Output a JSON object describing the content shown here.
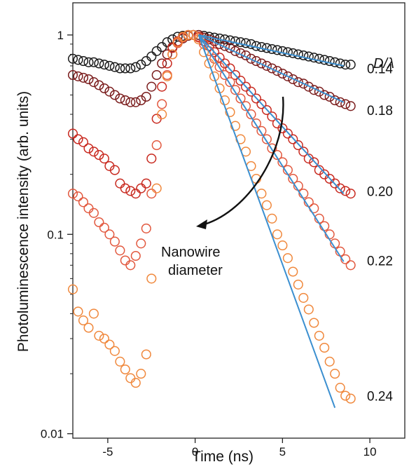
{
  "chart_data": {
    "type": "scatter",
    "title": "",
    "xlabel": "Time (ns)",
    "ylabel": "Photoluminescence intensity (arb. units)",
    "xlim": [
      -7,
      12
    ],
    "ylim": [
      0.0095,
      1.45
    ],
    "yscale": "log",
    "grid": false,
    "xticks": [
      -5,
      0,
      5,
      10
    ],
    "xtick_labels": [
      "-5",
      "0",
      "5",
      "10"
    ],
    "yticks": [
      0.01,
      0.1,
      1
    ],
    "ytick_labels": [
      "0.01",
      "0.1",
      "1"
    ],
    "legend_title": "D/λ",
    "annotation": {
      "line1": "Nanowire",
      "line2": "diameter"
    },
    "series": [
      {
        "label": "0.14",
        "color": "#1a1a1a",
        "label_value": 0.68,
        "points": [
          [
            -7,
            0.76
          ],
          [
            -6.7,
            0.75
          ],
          [
            -6.4,
            0.74
          ],
          [
            -6.1,
            0.73
          ],
          [
            -5.8,
            0.73
          ],
          [
            -5.5,
            0.72
          ],
          [
            -5.2,
            0.71
          ],
          [
            -4.9,
            0.7
          ],
          [
            -4.6,
            0.69
          ],
          [
            -4.3,
            0.68
          ],
          [
            -4.0,
            0.68
          ],
          [
            -3.7,
            0.68
          ],
          [
            -3.4,
            0.69
          ],
          [
            -3.1,
            0.71
          ],
          [
            -2.8,
            0.74
          ],
          [
            -2.5,
            0.78
          ],
          [
            -2.2,
            0.83
          ],
          [
            -1.9,
            0.87
          ],
          [
            -1.6,
            0.92
          ],
          [
            -1.3,
            0.95
          ],
          [
            -1.0,
            0.98
          ],
          [
            -0.7,
            0.99
          ],
          [
            -0.4,
            1.0
          ],
          [
            -0.1,
            1.0
          ],
          [
            0.2,
            1.0
          ],
          [
            0.5,
            0.99
          ],
          [
            0.8,
            0.98
          ],
          [
            1.1,
            0.97
          ],
          [
            1.4,
            0.96
          ],
          [
            1.7,
            0.95
          ],
          [
            2.0,
            0.94
          ],
          [
            2.3,
            0.93
          ],
          [
            2.6,
            0.92
          ],
          [
            2.9,
            0.91
          ],
          [
            3.2,
            0.9
          ],
          [
            3.5,
            0.88
          ],
          [
            3.8,
            0.87
          ],
          [
            4.1,
            0.86
          ],
          [
            4.4,
            0.85
          ],
          [
            4.7,
            0.84
          ],
          [
            5.0,
            0.83
          ],
          [
            5.3,
            0.82
          ],
          [
            5.6,
            0.81
          ],
          [
            5.9,
            0.8
          ],
          [
            6.2,
            0.79
          ],
          [
            6.5,
            0.78
          ],
          [
            6.8,
            0.77
          ],
          [
            7.1,
            0.76
          ],
          [
            7.4,
            0.75
          ],
          [
            7.7,
            0.74
          ],
          [
            8.0,
            0.73
          ],
          [
            8.3,
            0.72
          ],
          [
            8.6,
            0.71
          ],
          [
            8.9,
            0.71
          ]
        ],
        "fit": [
          [
            0.2,
            1.0
          ],
          [
            8.5,
            0.7
          ]
        ]
      },
      {
        "label": "0.18",
        "color": "#7a1c1c",
        "label_value": 0.42,
        "points": [
          [
            -7,
            0.63
          ],
          [
            -6.7,
            0.62
          ],
          [
            -6.4,
            0.61
          ],
          [
            -6.1,
            0.6
          ],
          [
            -5.8,
            0.58
          ],
          [
            -5.5,
            0.56
          ],
          [
            -5.2,
            0.54
          ],
          [
            -4.9,
            0.52
          ],
          [
            -4.6,
            0.5
          ],
          [
            -4.3,
            0.48
          ],
          [
            -4.0,
            0.47
          ],
          [
            -3.7,
            0.46
          ],
          [
            -3.4,
            0.46
          ],
          [
            -3.1,
            0.47
          ],
          [
            -2.8,
            0.49
          ],
          [
            -2.5,
            0.55
          ],
          [
            -2.2,
            0.63
          ],
          [
            -1.9,
            0.72
          ],
          [
            -1.6,
            0.8
          ],
          [
            -1.3,
            0.87
          ],
          [
            -1.0,
            0.92
          ],
          [
            -0.7,
            0.96
          ],
          [
            -0.4,
            0.99
          ],
          [
            -0.1,
            1.0
          ],
          [
            0.2,
            1.0
          ],
          [
            0.5,
            0.97
          ],
          [
            0.8,
            0.95
          ],
          [
            1.1,
            0.93
          ],
          [
            1.4,
            0.9
          ],
          [
            1.7,
            0.88
          ],
          [
            2.0,
            0.86
          ],
          [
            2.3,
            0.83
          ],
          [
            2.6,
            0.81
          ],
          [
            2.9,
            0.79
          ],
          [
            3.2,
            0.76
          ],
          [
            3.5,
            0.74
          ],
          [
            3.8,
            0.72
          ],
          [
            4.1,
            0.7
          ],
          [
            4.4,
            0.68
          ],
          [
            4.7,
            0.66
          ],
          [
            5.0,
            0.64
          ],
          [
            5.3,
            0.62
          ],
          [
            5.6,
            0.6
          ],
          [
            5.9,
            0.58
          ],
          [
            6.2,
            0.57
          ],
          [
            6.5,
            0.55
          ],
          [
            6.8,
            0.53
          ],
          [
            7.1,
            0.52
          ],
          [
            7.4,
            0.5
          ],
          [
            7.7,
            0.49
          ],
          [
            8.0,
            0.47
          ],
          [
            8.3,
            0.46
          ],
          [
            8.6,
            0.45
          ],
          [
            8.9,
            0.44
          ]
        ],
        "fit": [
          [
            0.2,
            1.0
          ],
          [
            8.5,
            0.46
          ]
        ]
      },
      {
        "label": "0.20",
        "color": "#c8281e",
        "label_value": 0.165,
        "points": [
          [
            -7,
            0.32
          ],
          [
            -6.7,
            0.3
          ],
          [
            -6.4,
            0.29
          ],
          [
            -6.1,
            0.27
          ],
          [
            -5.8,
            0.26
          ],
          [
            -5.5,
            0.25
          ],
          [
            -5.2,
            0.24
          ],
          [
            -4.9,
            0.22
          ],
          [
            -4.6,
            0.21
          ],
          [
            -4.3,
            0.18
          ],
          [
            -4.0,
            0.17
          ],
          [
            -3.7,
            0.165
          ],
          [
            -3.4,
            0.16
          ],
          [
            -3.1,
            0.17
          ],
          [
            -2.8,
            0.18
          ],
          [
            -2.5,
            0.24
          ],
          [
            -2.2,
            0.38
          ],
          [
            -1.9,
            0.55
          ],
          [
            -1.6,
            0.72
          ],
          [
            -1.3,
            0.86
          ],
          [
            -1.0,
            0.93
          ],
          [
            -0.7,
            0.98
          ],
          [
            -0.4,
            1.0
          ],
          [
            -0.1,
            1.0
          ],
          [
            0.2,
            0.98
          ],
          [
            0.5,
            0.93
          ],
          [
            0.8,
            0.88
          ],
          [
            1.1,
            0.82
          ],
          [
            1.4,
            0.77
          ],
          [
            1.7,
            0.72
          ],
          [
            2.0,
            0.68
          ],
          [
            2.3,
            0.63
          ],
          [
            2.6,
            0.59
          ],
          [
            2.9,
            0.55
          ],
          [
            3.2,
            0.52
          ],
          [
            3.5,
            0.48
          ],
          [
            3.8,
            0.45
          ],
          [
            4.1,
            0.42
          ],
          [
            4.4,
            0.39
          ],
          [
            4.7,
            0.36
          ],
          [
            5.0,
            0.34
          ],
          [
            5.3,
            0.32
          ],
          [
            5.6,
            0.3
          ],
          [
            5.9,
            0.28
          ],
          [
            6.2,
            0.26
          ],
          [
            6.5,
            0.24
          ],
          [
            6.8,
            0.23
          ],
          [
            7.1,
            0.21
          ],
          [
            7.4,
            0.2
          ],
          [
            7.7,
            0.19
          ],
          [
            8.0,
            0.18
          ],
          [
            8.3,
            0.17
          ],
          [
            8.6,
            0.165
          ],
          [
            8.9,
            0.16
          ]
        ],
        "fit": [
          [
            0.2,
            1.0
          ],
          [
            8.5,
            0.16
          ]
        ]
      },
      {
        "label": "0.22",
        "color": "#e2583e",
        "label_value": 0.074,
        "points": [
          [
            -7,
            0.16
          ],
          [
            -6.7,
            0.155
          ],
          [
            -6.4,
            0.145
          ],
          [
            -6.1,
            0.135
          ],
          [
            -5.8,
            0.128
          ],
          [
            -5.5,
            0.115
          ],
          [
            -5.2,
            0.108
          ],
          [
            -4.9,
            0.1
          ],
          [
            -4.6,
            0.092
          ],
          [
            -4.3,
            0.083
          ],
          [
            -4.0,
            0.074
          ],
          [
            -3.7,
            0.07
          ],
          [
            -3.4,
            0.078
          ],
          [
            -3.1,
            0.09
          ],
          [
            -2.8,
            0.107
          ],
          [
            -2.5,
            0.16
          ],
          [
            -2.2,
            0.28
          ],
          [
            -1.9,
            0.45
          ],
          [
            -1.6,
            0.63
          ],
          [
            -1.3,
            0.8
          ],
          [
            -1.0,
            0.91
          ],
          [
            -0.7,
            0.97
          ],
          [
            -0.4,
            1.0
          ],
          [
            -0.1,
            1.0
          ],
          [
            0.2,
            0.97
          ],
          [
            0.5,
            0.9
          ],
          [
            0.8,
            0.83
          ],
          [
            1.1,
            0.76
          ],
          [
            1.4,
            0.69
          ],
          [
            1.7,
            0.63
          ],
          [
            2.0,
            0.58
          ],
          [
            2.3,
            0.53
          ],
          [
            2.6,
            0.48
          ],
          [
            2.9,
            0.44
          ],
          [
            3.2,
            0.4
          ],
          [
            3.5,
            0.36
          ],
          [
            3.8,
            0.33
          ],
          [
            4.1,
            0.3
          ],
          [
            4.4,
            0.27
          ],
          [
            4.7,
            0.25
          ],
          [
            5.0,
            0.23
          ],
          [
            5.3,
            0.21
          ],
          [
            5.6,
            0.19
          ],
          [
            5.9,
            0.175
          ],
          [
            6.2,
            0.16
          ],
          [
            6.5,
            0.145
          ],
          [
            6.8,
            0.135
          ],
          [
            7.1,
            0.12
          ],
          [
            7.4,
            0.11
          ],
          [
            7.7,
            0.1
          ],
          [
            8.0,
            0.09
          ],
          [
            8.3,
            0.082
          ],
          [
            8.6,
            0.075
          ],
          [
            8.9,
            0.07
          ]
        ],
        "fit": [
          [
            0.2,
            1.0
          ],
          [
            8.5,
            0.073
          ]
        ]
      },
      {
        "label": "0.24",
        "color": "#f0883c",
        "label_value": 0.0155,
        "points": [
          [
            -7,
            0.053
          ],
          [
            -6.7,
            0.041
          ],
          [
            -6.4,
            0.037
          ],
          [
            -6.1,
            0.034
          ],
          [
            -5.8,
            0.04
          ],
          [
            -5.5,
            0.031
          ],
          [
            -5.2,
            0.03
          ],
          [
            -4.9,
            0.028
          ],
          [
            -4.6,
            0.026
          ],
          [
            -4.3,
            0.023
          ],
          [
            -4.0,
            0.021
          ],
          [
            -3.7,
            0.019
          ],
          [
            -3.4,
            0.018
          ],
          [
            -3.1,
            0.02
          ],
          [
            -2.8,
            0.025
          ],
          [
            -2.5,
            0.06
          ],
          [
            -2.2,
            0.17
          ],
          [
            -1.9,
            0.4
          ],
          [
            -1.6,
            0.62
          ],
          [
            -1.3,
            0.8
          ],
          [
            -1.0,
            0.92
          ],
          [
            -0.7,
            0.98
          ],
          [
            -0.4,
            1.0
          ],
          [
            -0.1,
            1.0
          ],
          [
            0.2,
            0.95
          ],
          [
            0.5,
            0.82
          ],
          [
            0.8,
            0.72
          ],
          [
            1.1,
            0.62
          ],
          [
            1.4,
            0.54
          ],
          [
            1.7,
            0.47
          ],
          [
            2.0,
            0.41
          ],
          [
            2.3,
            0.35
          ],
          [
            2.6,
            0.3
          ],
          [
            2.9,
            0.26
          ],
          [
            3.2,
            0.22
          ],
          [
            3.5,
            0.19
          ],
          [
            3.8,
            0.16
          ],
          [
            4.1,
            0.14
          ],
          [
            4.4,
            0.12
          ],
          [
            4.7,
            0.1
          ],
          [
            5.0,
            0.088
          ],
          [
            5.3,
            0.076
          ],
          [
            5.6,
            0.065
          ],
          [
            5.9,
            0.056
          ],
          [
            6.2,
            0.048
          ],
          [
            6.5,
            0.042
          ],
          [
            6.8,
            0.036
          ],
          [
            7.1,
            0.031
          ],
          [
            7.4,
            0.027
          ],
          [
            7.7,
            0.023
          ],
          [
            8.0,
            0.02
          ],
          [
            8.3,
            0.017
          ],
          [
            8.6,
            0.0155
          ],
          [
            8.9,
            0.015
          ]
        ],
        "fit": [
          [
            0.2,
            1.0
          ],
          [
            8.0,
            0.0135
          ]
        ]
      }
    ]
  }
}
